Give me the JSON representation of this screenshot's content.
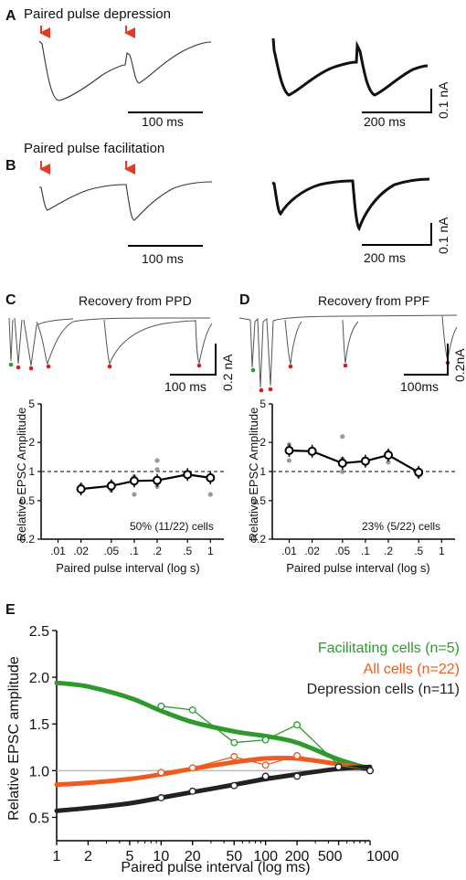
{
  "panels": {
    "A": {
      "letter": "A",
      "title": "Paired pulse depression",
      "scalebar_left": "100 ms",
      "scalebar_right_time": "200 ms",
      "scalebar_right_amp": "0.1 nA"
    },
    "B": {
      "letter": "B",
      "title": "Paired pulse facilitation",
      "scalebar_left": "100 ms",
      "scalebar_right_time": "200 ms",
      "scalebar_right_amp": "0.1 nA"
    },
    "C": {
      "letter": "C",
      "title": "Recovery from PPD",
      "scalebar_time": "100 ms",
      "scalebar_amp": "0.2 nA"
    },
    "D": {
      "letter": "D",
      "title": "Recovery from PPF",
      "scalebar_time": "100ms",
      "scalebar_amp": "0.2nA"
    },
    "E": {
      "letter": "E"
    }
  },
  "colors": {
    "arrow": "#e53a23",
    "green": "#2e9a2e",
    "orange": "#f05a1e",
    "black": "#222222",
    "dot": "#888888",
    "gray_line": "#bbbbbb",
    "red_dot": "#d22020"
  },
  "chart_data": [
    {
      "type": "scatter",
      "panel": "C",
      "title": "",
      "xlabel": "Paired pulse interval (log s)",
      "ylabel": "Relative EPSC Amplitude",
      "xscale": "log",
      "yscale": "log",
      "xticks": [
        ".01",
        ".02",
        ".05",
        ".1",
        ".2",
        ".5",
        "1"
      ],
      "yticks": [
        "0.2",
        "0.5",
        "1",
        "2",
        "5"
      ],
      "reference_line": 1,
      "annotation": "50% (11/22) cells",
      "series": [
        {
          "x": [
            0.02,
            0.05,
            0.1,
            0.2,
            0.5,
            1
          ],
          "y": [
            0.66,
            0.71,
            0.8,
            0.81,
            0.93,
            0.86
          ]
        }
      ],
      "raw_points": [
        [
          0.02,
          0.62
        ],
        [
          0.02,
          0.65
        ],
        [
          0.02,
          0.72
        ],
        [
          0.05,
          0.64
        ],
        [
          0.05,
          0.7
        ],
        [
          0.05,
          0.77
        ],
        [
          0.1,
          0.58
        ],
        [
          0.1,
          0.78
        ],
        [
          0.1,
          0.88
        ],
        [
          0.2,
          0.7
        ],
        [
          0.2,
          1.05
        ],
        [
          0.2,
          1.3
        ],
        [
          0.5,
          0.92
        ],
        [
          0.5,
          0.95
        ],
        [
          1,
          0.58
        ],
        [
          1,
          0.9
        ]
      ]
    },
    {
      "type": "scatter",
      "panel": "D",
      "title": "",
      "xlabel": "Paired pulse interval (log s)",
      "ylabel": "Relative EPSC Amplitude",
      "xscale": "log",
      "yscale": "log",
      "xticks": [
        ".01",
        ".02",
        ".05",
        ".1",
        ".2",
        ".5",
        "1"
      ],
      "yticks": [
        "0.2",
        "0.5",
        "1",
        "2",
        "5"
      ],
      "reference_line": 1,
      "annotation": "23% (5/22) cells",
      "series": [
        {
          "x": [
            0.01,
            0.02,
            0.05,
            0.1,
            0.2,
            0.5
          ],
          "y": [
            1.65,
            1.62,
            1.22,
            1.28,
            1.48,
            0.98
          ]
        }
      ],
      "raw_points": [
        [
          0.01,
          1.3
        ],
        [
          0.01,
          1.9
        ],
        [
          0.02,
          1.55
        ],
        [
          0.02,
          1.7
        ],
        [
          0.05,
          1.0
        ],
        [
          0.05,
          1.35
        ],
        [
          0.05,
          2.3
        ],
        [
          0.1,
          1.2
        ],
        [
          0.1,
          1.35
        ],
        [
          0.2,
          1.25
        ],
        [
          0.2,
          1.6
        ],
        [
          0.5,
          0.9
        ],
        [
          0.5,
          1.05
        ]
      ]
    },
    {
      "type": "line",
      "panel": "E",
      "title": "",
      "xlabel": "Paired pulse interval (log ms)",
      "ylabel": "Relative EPSC amplitude",
      "xscale": "log",
      "xlim": [
        1,
        1000
      ],
      "ylim": [
        0.25,
        2.5
      ],
      "xticks": [
        "1",
        "2",
        "5",
        "10",
        "20",
        "50",
        "100",
        "200",
        "500",
        "1000"
      ],
      "yticks": [
        "0.5",
        "1.0",
        "1.5",
        "2.0",
        "2.5"
      ],
      "reference_line": 1.0,
      "legend_position": "top-right",
      "legend": [
        "Facilitating cells (n=5)",
        "All cells (n=22)",
        "Depression cells (n=11)"
      ],
      "series": [
        {
          "name": "Facilitating cells (n=5)",
          "color": "#2e9a2e",
          "x": [
            10,
            20,
            50,
            100,
            200,
            500,
            1000
          ],
          "y": [
            1.69,
            1.65,
            1.3,
            1.33,
            1.49,
            1.06,
            1.0
          ],
          "fit_x": [
            1,
            2,
            5,
            10,
            20,
            50,
            100,
            200,
            500,
            1000
          ],
          "fit_y": [
            1.94,
            1.9,
            1.78,
            1.64,
            1.52,
            1.42,
            1.37,
            1.3,
            1.12,
            1.02
          ]
        },
        {
          "name": "All cells (n=22)",
          "color": "#f05a1e",
          "x": [
            10,
            20,
            50,
            100,
            200,
            500,
            1000
          ],
          "y": [
            0.98,
            1.03,
            1.15,
            1.06,
            1.16,
            1.05,
            1.0
          ],
          "fit_x": [
            1,
            2,
            5,
            10,
            20,
            50,
            100,
            200,
            500,
            1000
          ],
          "fit_y": [
            0.85,
            0.87,
            0.91,
            0.96,
            1.02,
            1.09,
            1.13,
            1.13,
            1.07,
            1.02
          ]
        },
        {
          "name": "Depression cells (n=11)",
          "color": "#222222",
          "x": [
            10,
            20,
            50,
            100,
            200,
            500,
            1000
          ],
          "y": [
            0.71,
            0.78,
            0.84,
            0.94,
            0.94,
            1.04,
            1.0
          ],
          "fit_x": [
            1,
            2,
            5,
            10,
            20,
            50,
            100,
            200,
            500,
            1000
          ],
          "fit_y": [
            0.57,
            0.6,
            0.65,
            0.71,
            0.77,
            0.85,
            0.91,
            0.96,
            1.02,
            1.04
          ]
        }
      ]
    }
  ]
}
